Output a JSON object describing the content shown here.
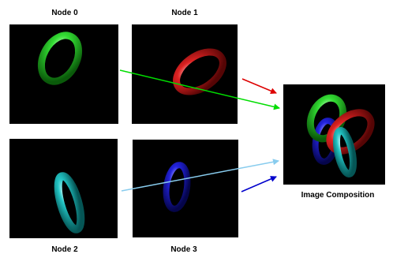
{
  "nodes": [
    {
      "label": "Node 0",
      "ring_color": "green-torus"
    },
    {
      "label": "Node 1",
      "ring_color": "red-torus"
    },
    {
      "label": "Node 2",
      "ring_color": "cyan-torus"
    },
    {
      "label": "Node 3",
      "ring_color": "blue-torus"
    }
  ],
  "composition": {
    "label": "Image Composition"
  },
  "arrows": [
    {
      "name": "node-0-to-composition",
      "color": "#00dd00"
    },
    {
      "name": "node-1-to-composition",
      "color": "#dd0000"
    },
    {
      "name": "node-2-to-composition",
      "color": "#88ccee"
    },
    {
      "name": "node-3-to-composition",
      "color": "#0000cc"
    }
  ],
  "colors": {
    "green": "#22cc22",
    "red": "#cc1111",
    "cyan": "#22bbbb",
    "blue": "#1111cc",
    "panel_background": "#000000"
  }
}
